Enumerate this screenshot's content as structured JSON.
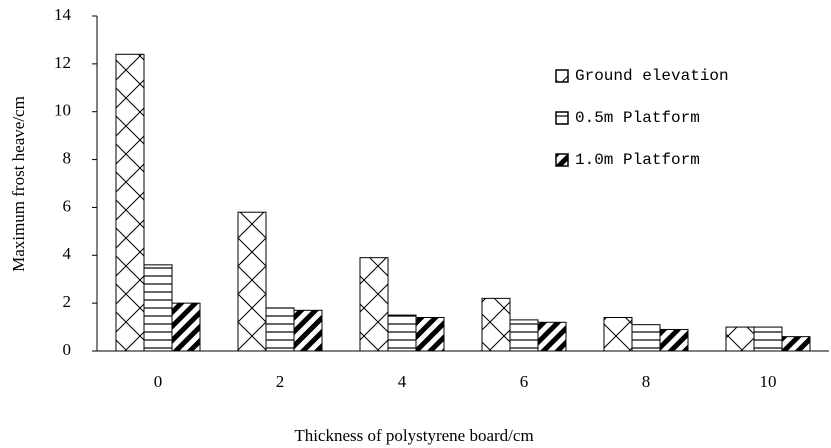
{
  "chart_data": {
    "type": "bar",
    "x_label": "Thickness of polystyrene board/cm",
    "y_label": "Maximum frost heave/cm",
    "categories": [
      "0",
      "2",
      "4",
      "6",
      "8",
      "10"
    ],
    "series": [
      {
        "name": "Ground elevation",
        "color": "#000000",
        "values": [
          12.4,
          5.8,
          3.9,
          2.2,
          1.4,
          1.0
        ]
      },
      {
        "name": "0.5m Platform",
        "color": "#000000",
        "values": [
          3.6,
          1.8,
          1.5,
          1.3,
          1.1,
          1.0
        ]
      },
      {
        "name": "1.0m Platform",
        "color": "#000000",
        "values": [
          2.0,
          1.7,
          1.4,
          1.2,
          0.9,
          0.6
        ]
      }
    ],
    "ylim": [
      0,
      14
    ],
    "yticks": [
      0,
      2,
      4,
      6,
      8,
      10,
      12,
      14
    ],
    "grid": false,
    "legend": "upper right"
  }
}
